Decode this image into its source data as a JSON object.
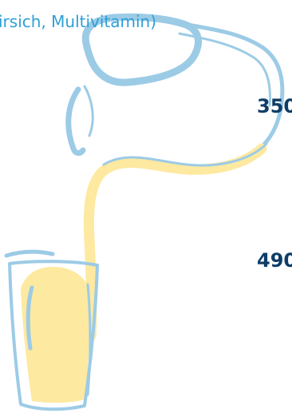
{
  "heading": {
    "partial_text": "irsich, Multivitamin)"
  },
  "stats": {
    "first_value": "350",
    "second_value": "490"
  },
  "colors": {
    "juice_yellow": "#fde9a0",
    "outline_blue": "#9ccbe6",
    "heading_blue": "#2e9fd6",
    "value_navy": "#0e3d68"
  },
  "illustration": {
    "pitcher_icon": "pitcher-icon",
    "juice_stream_icon": "juice-stream-icon",
    "glass_icon": "glass-icon"
  }
}
